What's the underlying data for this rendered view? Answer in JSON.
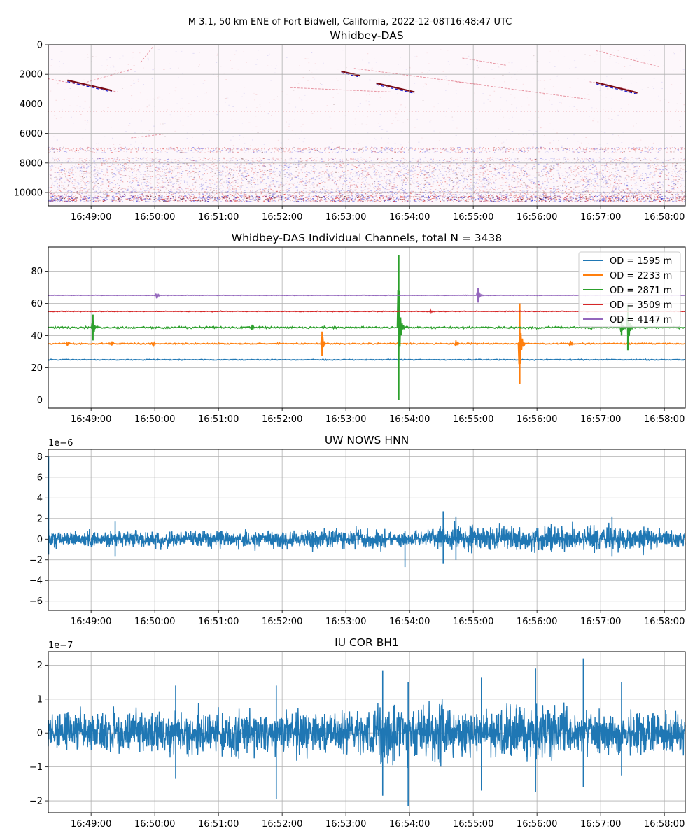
{
  "suptitle": "M 3.1, 50 km ENE of Fort Bidwell, California, 2022-12-08T16:48:47 UTC",
  "colors": {
    "blue": "#1f77b4",
    "orange": "#ff7f0e",
    "green": "#2ca02c",
    "red": "#d62728",
    "purple": "#9467bd",
    "grid": "#b0b0b0"
  },
  "chart_data": [
    {
      "type": "heatmap",
      "title": "Whidbey-DAS",
      "x_tick_labels": [
        "16:49:00",
        "16:50:00",
        "16:51:00",
        "16:52:00",
        "16:53:00",
        "16:54:00",
        "16:55:00",
        "16:56:00",
        "16:57:00",
        "16:58:00"
      ],
      "y_ticks": [
        0,
        2000,
        4000,
        6000,
        8000,
        10000
      ],
      "ylim": [
        10900,
        0
      ],
      "colormap": "seismic (blue-white-red)",
      "grid": true,
      "linear_arrivals": [
        {
          "t": [
            0.55,
            1.35
          ],
          "ch": [
            2600,
            1600
          ]
        },
        {
          "t": [
            1.45,
            1.65
          ],
          "ch": [
            1200,
            100
          ]
        },
        {
          "t": [
            3.8,
            5.4
          ],
          "ch": [
            2900,
            3200
          ]
        },
        {
          "t": [
            6.5,
            7.2
          ],
          "ch": [
            900,
            1400
          ]
        },
        {
          "t": [
            4.8,
            6.8
          ],
          "ch": [
            1600,
            2700
          ]
        },
        {
          "t": [
            6.4,
            8.5
          ],
          "ch": [
            2500,
            3700
          ]
        },
        {
          "t": [
            8.6,
            9.6
          ],
          "ch": [
            400,
            1500
          ]
        },
        {
          "t": [
            8.5,
            9.2
          ],
          "ch": [
            2500,
            3100
          ]
        },
        {
          "t": [
            0.0,
            1.1
          ],
          "ch": [
            2300,
            3200
          ]
        },
        {
          "t": [
            1.3,
            1.9
          ],
          "ch": [
            6300,
            6000
          ]
        }
      ],
      "strong_arrivals": [
        {
          "t": [
            0.3,
            1.0
          ],
          "ch": [
            2400,
            3100
          ]
        },
        {
          "t": [
            5.15,
            5.75
          ],
          "ch": [
            2600,
            3200
          ]
        },
        {
          "t": [
            8.6,
            9.25
          ],
          "ch": [
            2550,
            3250
          ]
        },
        {
          "t": [
            4.6,
            4.9
          ],
          "ch": [
            1800,
            2100
          ]
        }
      ]
    },
    {
      "type": "line",
      "title": "Whidbey-DAS Individual Channels, total N = 3438",
      "x_tick_labels": [
        "16:49:00",
        "16:50:00",
        "16:51:00",
        "16:52:00",
        "16:53:00",
        "16:54:00",
        "16:55:00",
        "16:56:00",
        "16:57:00",
        "16:58:00"
      ],
      "y_ticks": [
        0,
        20,
        40,
        60,
        80
      ],
      "ylim": [
        -5,
        95
      ],
      "grid": true,
      "legend_position": "top-right",
      "series": [
        {
          "name": "OD = 1595 m",
          "color": "#1f77b4",
          "offset": 25,
          "noise": 0.4,
          "events": []
        },
        {
          "name": "OD = 2233 m",
          "color": "#ff7f0e",
          "offset": 35,
          "noise": 0.6,
          "events": [
            {
              "t": 0.3,
              "amp": 1.5
            },
            {
              "t": 1.0,
              "amp": 1.5
            },
            {
              "t": 1.65,
              "amp": 1.3
            },
            {
              "t": 4.3,
              "amp": 7.5
            },
            {
              "t": 6.4,
              "amp": 2
            },
            {
              "t": 7.4,
              "amp": 25
            },
            {
              "t": 8.2,
              "amp": 3
            }
          ]
        },
        {
          "name": "OD = 2871 m",
          "color": "#2ca02c",
          "offset": 45,
          "noise": 0.8,
          "events": [
            {
              "t": 0.7,
              "amp": 8
            },
            {
              "t": 3.2,
              "amp": 3
            },
            {
              "t": 5.5,
              "amp": 45
            },
            {
              "t": 9.0,
              "amp": 5
            },
            {
              "t": 9.1,
              "amp": 14
            }
          ]
        },
        {
          "name": "OD = 3509 m",
          "color": "#d62728",
          "offset": 55,
          "noise": 0.3,
          "events": [
            {
              "t": 6.0,
              "amp": 1
            }
          ]
        },
        {
          "name": "OD = 4147 m",
          "color": "#9467bd",
          "offset": 65,
          "noise": 0.2,
          "events": [
            {
              "t": 1.7,
              "amp": 2.5
            },
            {
              "t": 6.75,
              "amp": 4.5
            }
          ]
        }
      ]
    },
    {
      "type": "line",
      "title": "UW NOWS HNN",
      "scale_label": "1e−6",
      "x_tick_labels": [
        "16:49:00",
        "16:50:00",
        "16:51:00",
        "16:52:00",
        "16:53:00",
        "16:54:00",
        "16:55:00",
        "16:56:00",
        "16:57:00",
        "16:58:00"
      ],
      "y_ticks": [
        -6,
        -4,
        -2,
        0,
        2,
        4,
        6,
        8
      ],
      "ylim": [
        -6.9,
        8.7
      ],
      "grid": true,
      "series": [
        {
          "name": "",
          "color": "#1f77b4",
          "noise_min": -2.7,
          "noise_max": 2.7,
          "spike_start": 8.0
        }
      ]
    },
    {
      "type": "line",
      "title": "IU COR BH1",
      "scale_label": "1e−7",
      "x_tick_labels": [
        "16:49:00",
        "16:50:00",
        "16:51:00",
        "16:52:00",
        "16:53:00",
        "16:54:00",
        "16:55:00",
        "16:56:00",
        "16:57:00",
        "16:58:00"
      ],
      "y_ticks": [
        -2,
        -1,
        0,
        1,
        2
      ],
      "ylim": [
        -2.35,
        2.4
      ],
      "grid": true,
      "series": [
        {
          "name": "",
          "color": "#1f77b4",
          "noise_min": -2.15,
          "noise_max": 2.2
        }
      ]
    }
  ]
}
